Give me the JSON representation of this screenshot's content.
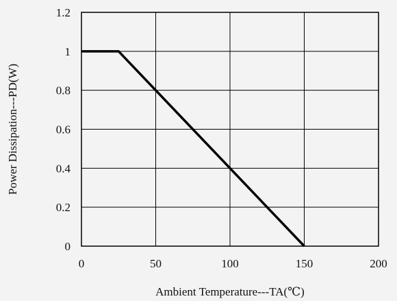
{
  "chart_data": {
    "type": "line",
    "title": "",
    "xlabel": "Ambient Temperature---TA(℃)",
    "ylabel": "Power Dissipation---PD(W)",
    "xlim": [
      0,
      200
    ],
    "ylim": [
      0,
      1.2
    ],
    "x_ticks": [
      "0",
      "50",
      "100",
      "150",
      "200"
    ],
    "y_ticks": [
      "0",
      "0.2",
      "0.4",
      "0.6",
      "0.8",
      "1",
      "1.2"
    ],
    "grid": true,
    "series": [
      {
        "x": [
          0,
          25,
          150
        ],
        "y": [
          1,
          1,
          0
        ]
      }
    ],
    "colors": {
      "line": "#000000",
      "grid": "#000000",
      "background": "#f3f3f3"
    }
  }
}
